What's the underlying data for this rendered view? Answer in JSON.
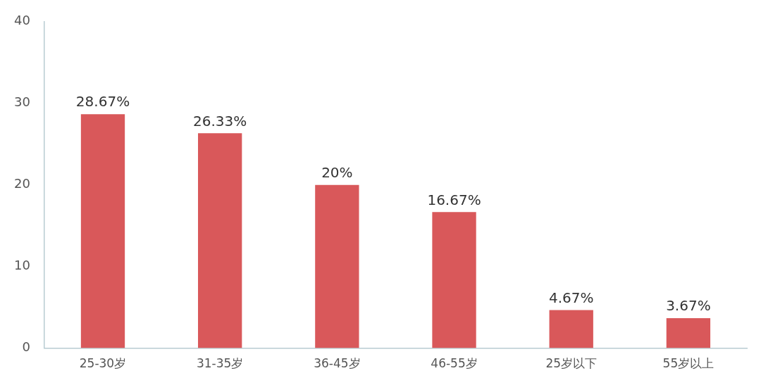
{
  "chart_data": {
    "type": "bar",
    "categories": [
      "25-30岁",
      "31-35岁",
      "36-45岁",
      "46-55岁",
      "25岁以下",
      "55岁以上"
    ],
    "values": [
      28.67,
      26.33,
      20,
      16.67,
      4.67,
      3.67
    ],
    "value_labels": [
      "28.67%",
      "26.33%",
      "20%",
      "16.67%",
      "4.67%",
      "3.67%"
    ],
    "color": "#d9585a",
    "ylim": [
      0,
      40
    ],
    "yticks": [
      0,
      10,
      20,
      30,
      40
    ]
  }
}
